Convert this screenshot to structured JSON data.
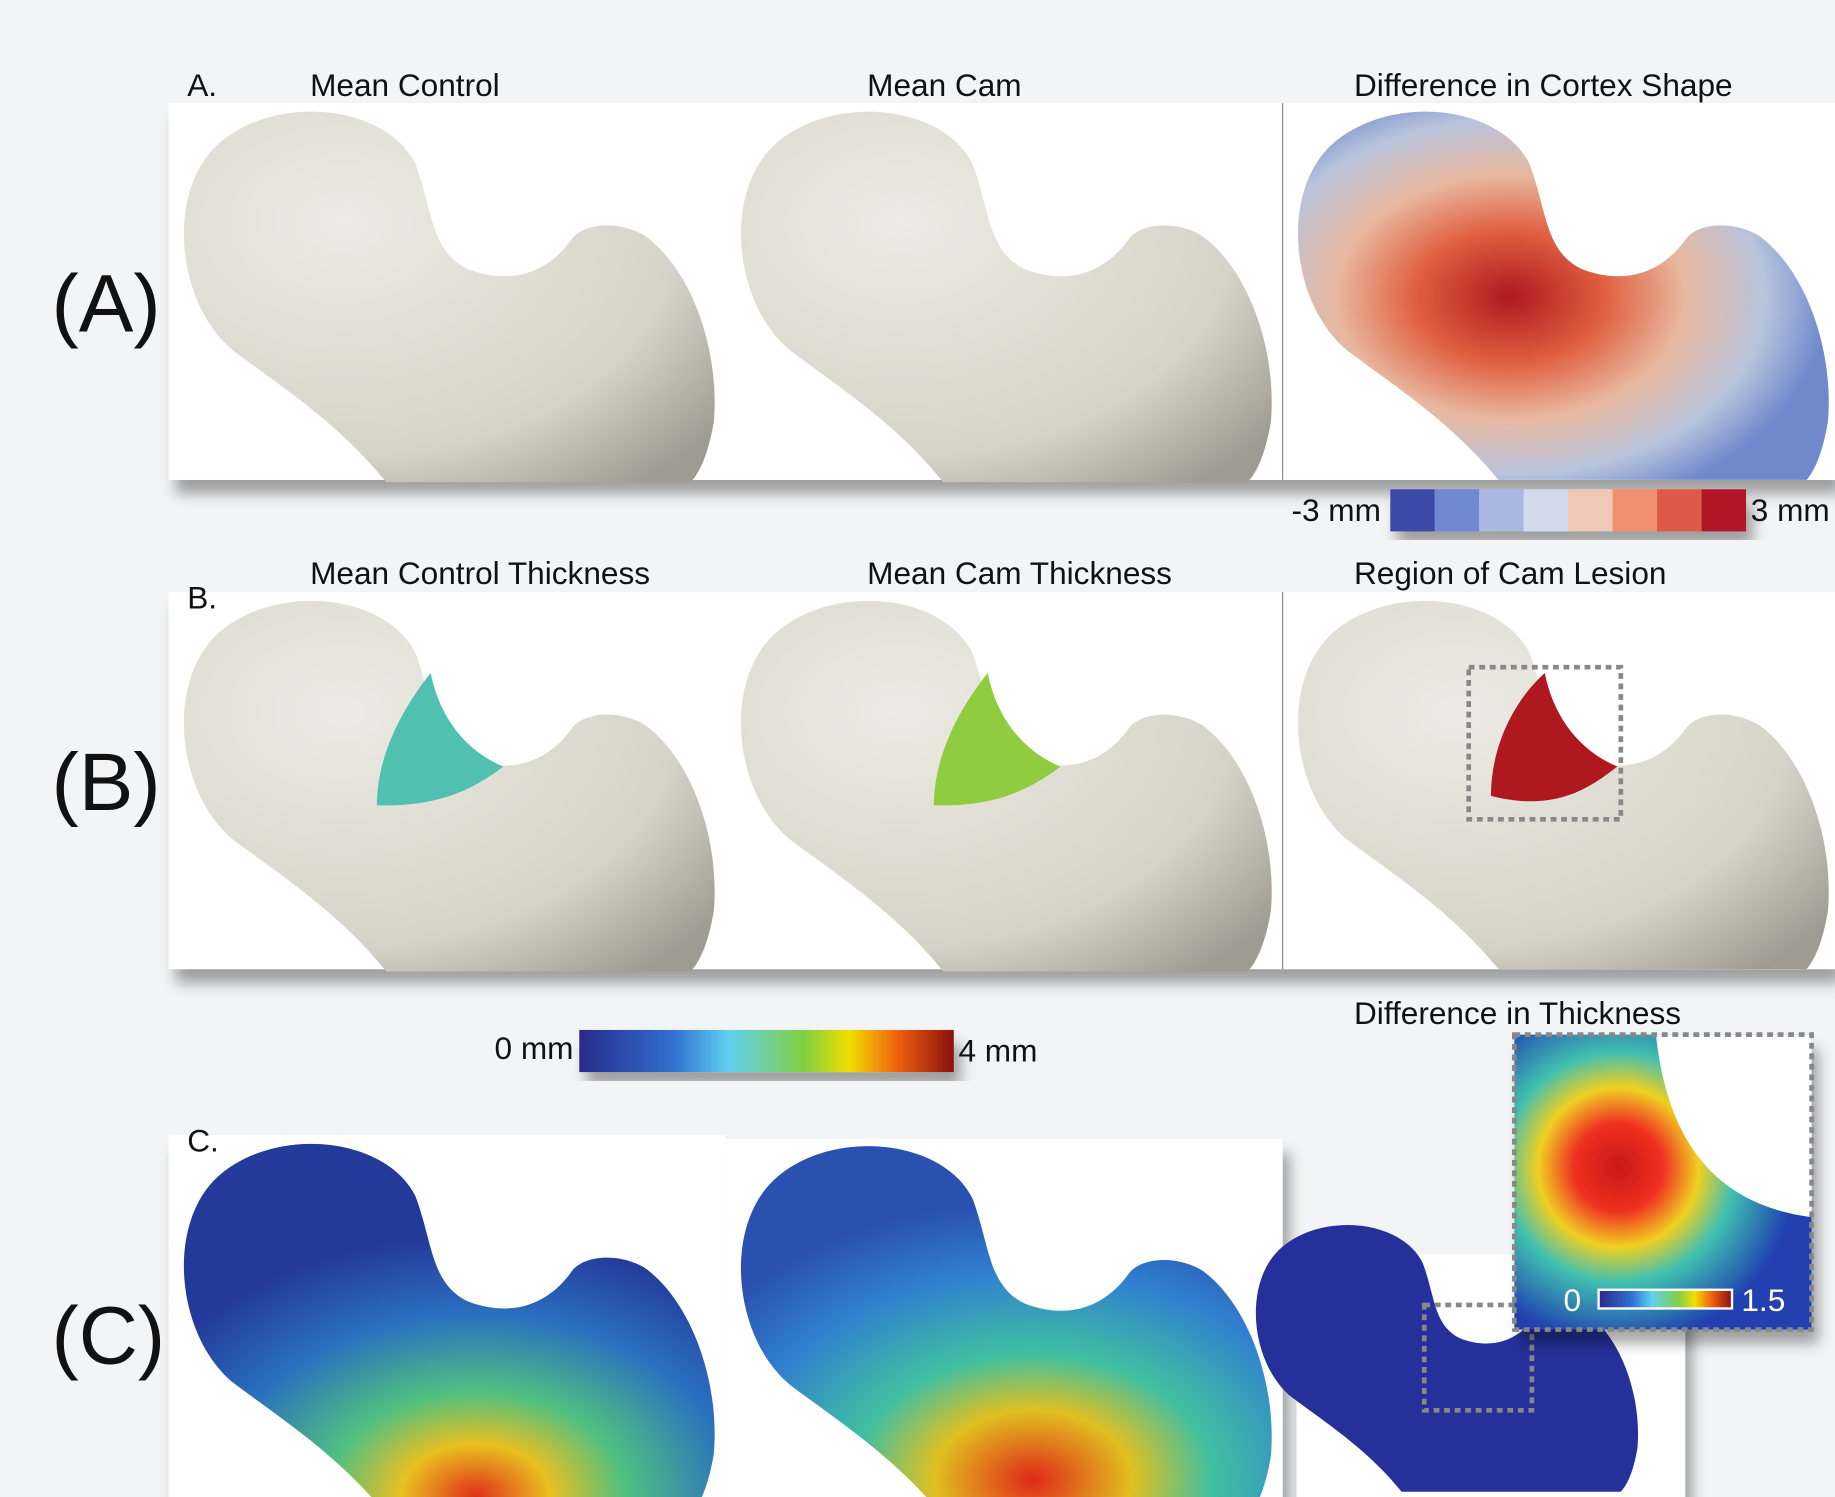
{
  "rows": [
    {
      "label": "(A)",
      "panel_letter": "A.",
      "titles": [
        "Mean Control",
        "Mean Cam",
        "Difference in Cortex Shape"
      ],
      "colorbar": {
        "min_label": "-3 mm",
        "max_label": "3 mm"
      }
    },
    {
      "label": "(B)",
      "panel_letter": "B.",
      "titles": [
        "Mean Control Thickness",
        "Mean Cam Thickness",
        "Region of Cam Lesion"
      ],
      "colorbar": {
        "min_label": "0 mm",
        "max_label": "4 mm"
      }
    },
    {
      "label": "(C)",
      "panel_letter": "C.",
      "inset": {
        "title": "Difference in Thickness",
        "colorbar": {
          "min_label": "0",
          "max_label": "1.5"
        }
      }
    }
  ]
}
